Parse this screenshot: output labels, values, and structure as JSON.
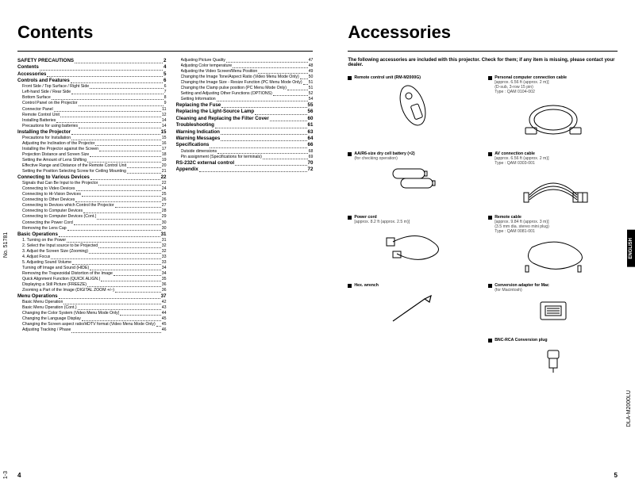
{
  "left": {
    "heading": "Contents",
    "pageNum": "4",
    "spineTop": "No. 51781",
    "spineBottom": "1-3",
    "col1": [
      {
        "t": "SAFETY PRECAUTIONS",
        "p": "2",
        "b": 1
      },
      {
        "t": "Contents",
        "p": "4",
        "b": 1
      },
      {
        "t": "Accessories",
        "p": "5",
        "b": 1
      },
      {
        "t": "Controls and Features",
        "p": "6",
        "b": 1
      },
      {
        "t": "Front Side / Top Surface / Right Side",
        "p": "6",
        "i": 1
      },
      {
        "t": "Left-hand Side / Rear Side",
        "p": "7",
        "i": 1
      },
      {
        "t": "Bottom Surface",
        "p": "8",
        "i": 1
      },
      {
        "t": "Control Panel on the Projector",
        "p": "9",
        "i": 1
      },
      {
        "t": "Connector Panel",
        "p": "11",
        "i": 1
      },
      {
        "t": "Remote Control Unit",
        "p": "12",
        "i": 1
      },
      {
        "t": "Installing Batteries",
        "p": "14",
        "i": 1
      },
      {
        "t": "Precautions for using batteries",
        "p": "14",
        "i": 1
      },
      {
        "t": "Installing the Projector",
        "p": "15",
        "b": 1
      },
      {
        "t": "Precautions for Installation",
        "p": "15",
        "i": 1
      },
      {
        "t": "Adjusting the Inclination of the Projector",
        "p": "16",
        "i": 1
      },
      {
        "t": "Installing the Projector against the Screen",
        "p": "17",
        "i": 1
      },
      {
        "t": "Projection Distance and Screen Size",
        "p": "18",
        "i": 1
      },
      {
        "t": "Setting the Amount of Lens Shifting",
        "p": "19",
        "i": 1
      },
      {
        "t": "Effective Range and Distance of the Remote Control Unit",
        "p": "20",
        "i": 1
      },
      {
        "t": "Setting the Position Selecting Screw for Ceiling Mounting",
        "p": "21",
        "i": 1
      },
      {
        "t": "Connecting to Various Devices",
        "p": "22",
        "b": 1
      },
      {
        "t": "Signals that Can Be Input to the Projector",
        "p": "22",
        "i": 1
      },
      {
        "t": "Connecting to Video Devices",
        "p": "24",
        "i": 1
      },
      {
        "t": "Connecting to Hi-Vision Devices",
        "p": "25",
        "i": 1
      },
      {
        "t": "Connecting to Other Devices",
        "p": "26",
        "i": 1
      },
      {
        "t": "Connecting to Devices which Control the Projector",
        "p": "27",
        "i": 1
      },
      {
        "t": "Connecting to Computer Devices",
        "p": "28",
        "i": 1
      },
      {
        "t": "Connecting to Computer Devices (Cont.)",
        "p": "29",
        "i": 1
      },
      {
        "t": "Connecting the Power Cord",
        "p": "30",
        "i": 1
      },
      {
        "t": "Removing the Lens Cap",
        "p": "30",
        "i": 1
      },
      {
        "t": "Basic Operations",
        "p": "31",
        "b": 1
      },
      {
        "t": "1. Turning on the Power",
        "p": "31",
        "i": 1
      },
      {
        "t": "2. Select the Input source to be Projected",
        "p": "32",
        "i": 1
      },
      {
        "t": "3. Adjust the Screen Size (Zooming)",
        "p": "32",
        "i": 1
      },
      {
        "t": "4. Adjust Focus",
        "p": "33",
        "i": 1
      },
      {
        "t": "5. Adjusting Sound Volume",
        "p": "33",
        "i": 1
      },
      {
        "t": "Turning off Image and Sound (HIDE)",
        "p": "34",
        "i": 1
      },
      {
        "t": "Removing the Trapezoidal Distortion of the Image",
        "p": "34",
        "i": 1
      },
      {
        "t": "Quick Alignment Function (QUICK ALIGN.)",
        "p": "35",
        "i": 1
      },
      {
        "t": "Displaying a Still Picture (FREEZE)",
        "p": "36",
        "i": 1
      },
      {
        "t": "Zooming a Part of the Image (DIGITAL ZOOM +/–)",
        "p": "36",
        "i": 1
      },
      {
        "t": "Menu Operations",
        "p": "37",
        "b": 1
      },
      {
        "t": "Basic Menu Operation",
        "p": "42",
        "i": 1
      },
      {
        "t": "Basic Menu Operation (Cont.)",
        "p": "43",
        "i": 1
      },
      {
        "t": "Changing the Color System (Video Menu Mode Only)",
        "p": "44",
        "i": 1
      },
      {
        "t": "Changing the Language Display",
        "p": "45",
        "i": 1
      },
      {
        "t": "Changing the Screen aspect ratio/HDTV format (Video Menu Mode Only)",
        "p": "45",
        "i": 1
      },
      {
        "t": "Adjusting Tracking / Phase",
        "p": "46",
        "i": 1
      }
    ],
    "col2": [
      {
        "t": "Adjusting Picture Quality",
        "p": "47",
        "i": 1
      },
      {
        "t": "Adjusting Color temperature",
        "p": "48",
        "i": 1
      },
      {
        "t": "Adjusting the Video Screen/Menu Position",
        "p": "49",
        "i": 1
      },
      {
        "t": "Changing the Image Tone/Aspect Ratio (Video Menu Mode Only)",
        "p": "50",
        "i": 1
      },
      {
        "t": "Changing the Image Size - Resize Function (PC Menu Mode Only)",
        "p": "51",
        "i": 1
      },
      {
        "t": "Changing the Clamp pulse position (PC Menu Mode Only)",
        "p": "51",
        "i": 1
      },
      {
        "t": "Setting and Adjusting Other Functions (OPTIONS)",
        "p": "52",
        "i": 1
      },
      {
        "t": "Getting Information",
        "p": "54",
        "i": 1
      },
      {
        "t": "Replacing the Fuse",
        "p": "55",
        "b": 1
      },
      {
        "t": "Replacing the Light-Source Lamp",
        "p": "56",
        "b": 1
      },
      {
        "t": "Cleaning and Replacing the Filter Cover",
        "p": "60",
        "b": 1
      },
      {
        "t": "Troubleshooting",
        "p": "61",
        "b": 1
      },
      {
        "t": "Warning Indication",
        "p": "63",
        "b": 1
      },
      {
        "t": "Warning Messages",
        "p": "64",
        "b": 1
      },
      {
        "t": "Specifications",
        "p": "66",
        "b": 1
      },
      {
        "t": "Outside dimensions",
        "p": "68",
        "i": 1
      },
      {
        "t": "Pin assignment (Specifications for terminals)",
        "p": "69",
        "i": 1
      },
      {
        "t": "RS-232C external control",
        "p": "70",
        "b": 1
      },
      {
        "t": "Appendix",
        "p": "72",
        "b": 1
      }
    ]
  },
  "right": {
    "heading": "Accessories",
    "intro": "The following accessories are included with this projector. Check for them; if any item is missing, please contact your dealer.",
    "pageNum": "5",
    "spine": "DLA-M2000LU",
    "langTab": "ENGLISH",
    "items": [
      {
        "title": "Remote control unit (RM-M2000G)",
        "sub": "",
        "svg": "remote"
      },
      {
        "title": "Personal computer connection cable",
        "sub": "[approx. 6.56 ft (approx. 2 m)]\n(D-sub, 3-row 15 pin)\nType : QAM 0104-002",
        "svg": "cable-loop"
      },
      {
        "title": "AA/R6-size dry cell battery (×2)",
        "sub": "(for checking operation)",
        "svg": "batteries"
      },
      {
        "title": "AV connection cable",
        "sub": "[approx. 6.56 ft (approx. 2 m)]\nType : QAM 0303-001",
        "svg": "av-cable"
      },
      {
        "title": "Power cord",
        "sub": "[approx. 8.2 ft (approx. 2.5 m)]",
        "svg": "power-cord"
      },
      {
        "title": "Remote cable",
        "sub": "[approx. 9.84 ft (approx. 3 m)]\n(3.5 mm dia. stereo mini plug)\nType : QAM 0081-001",
        "svg": "remote-cable"
      },
      {
        "title": "Hex. wrench",
        "sub": "",
        "svg": "wrench"
      },
      {
        "title": "Conversion adapter for Mac",
        "sub": "(for Macintosh)",
        "svg": "mac-adapter"
      },
      {
        "title": "",
        "sub": "",
        "svg": ""
      },
      {
        "title": "BNC-RCA Conversion plug",
        "sub": "",
        "svg": "bnc"
      }
    ]
  }
}
